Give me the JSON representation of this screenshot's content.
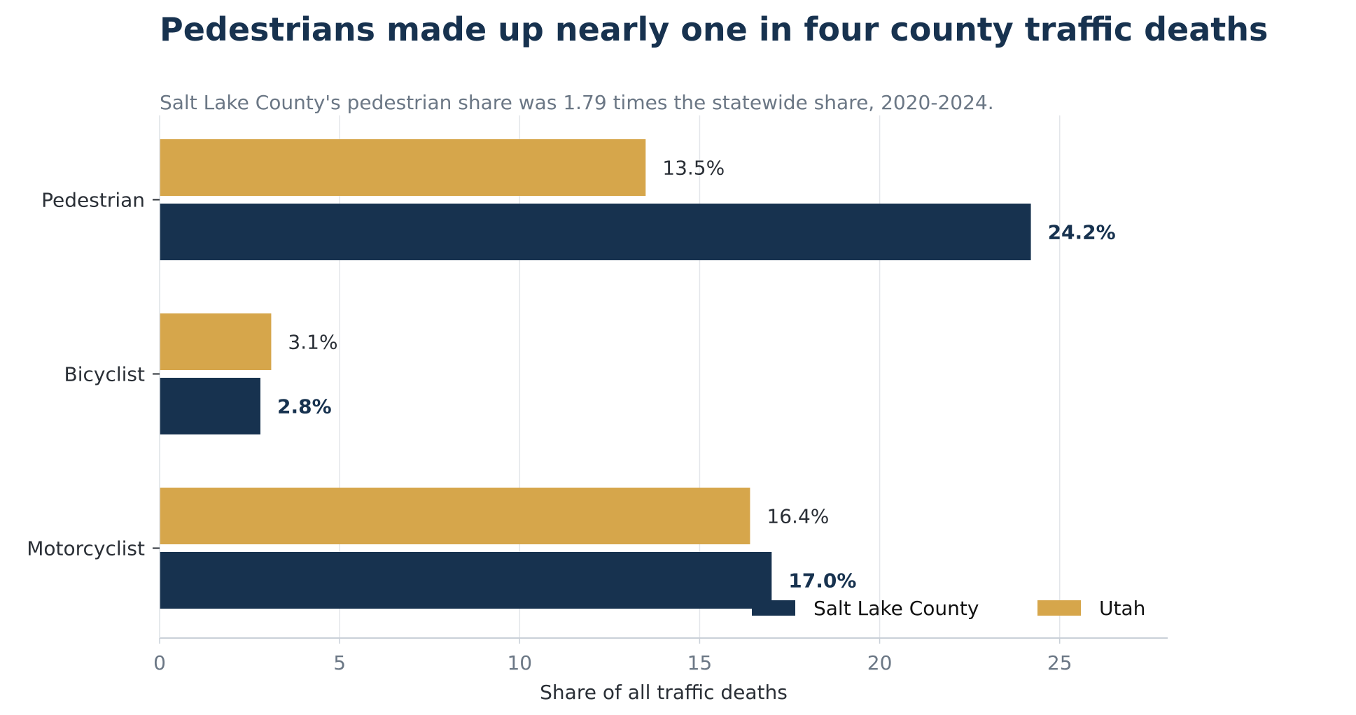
{
  "chart_data": {
    "type": "bar",
    "orientation": "horizontal",
    "title": "Pedestrians made up nearly one in four county traffic deaths",
    "subtitle": "Salt Lake County's pedestrian share was 1.79 times the statewide share, 2020-2024.",
    "xlabel": "Share of all traffic deaths",
    "ylabel": "",
    "xlim": [
      0,
      28
    ],
    "xticks": [
      0,
      5,
      10,
      15,
      20,
      25
    ],
    "grid": "vertical",
    "legend_position": "bottom-right",
    "categories": [
      "Pedestrian",
      "Bicyclist",
      "Motorcyclist"
    ],
    "series": [
      {
        "name": "Utah",
        "color": "#d6a64b",
        "values": [
          13.5,
          3.1,
          16.4
        ],
        "labels": [
          "13.5%",
          "3.1%",
          "16.4%"
        ]
      },
      {
        "name": "Salt Lake County",
        "color": "#17324f",
        "values": [
          24.2,
          2.8,
          17.0
        ],
        "labels": [
          "24.2%",
          "2.8%",
          "17.0%"
        ]
      }
    ],
    "legend_order": [
      "Salt Lake County",
      "Utah"
    ]
  }
}
